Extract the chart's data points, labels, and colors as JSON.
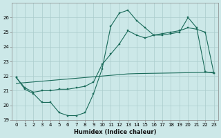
{
  "xlabel": "Humidex (Indice chaleur)",
  "xlim": [
    -0.5,
    23.5
  ],
  "ylim": [
    19,
    27
  ],
  "yticks": [
    19,
    20,
    21,
    22,
    23,
    24,
    25,
    26
  ],
  "xticks": [
    0,
    1,
    2,
    3,
    4,
    5,
    6,
    7,
    8,
    9,
    10,
    11,
    12,
    13,
    14,
    15,
    16,
    17,
    18,
    19,
    20,
    21,
    22,
    23
  ],
  "bg_color": "#cce8e8",
  "grid_color": "#aacccc",
  "line_color": "#1a6b5a",
  "line1_y": [
    21.9,
    21.1,
    20.8,
    20.2,
    20.2,
    19.5,
    19.3,
    19.3,
    19.5,
    20.8,
    22.5,
    25.4,
    26.3,
    26.5,
    25.8,
    25.3,
    24.8,
    24.8,
    24.9,
    25.0,
    26.0,
    25.3,
    22.3,
    22.2
  ],
  "line2_y": [
    21.9,
    21.2,
    20.9,
    21.0,
    21.0,
    21.1,
    21.1,
    21.2,
    21.3,
    21.6,
    22.8,
    23.5,
    24.2,
    25.1,
    24.8,
    24.6,
    24.8,
    24.9,
    25.0,
    25.1,
    25.3,
    25.2,
    25.0,
    22.2
  ],
  "line3_y": [
    21.5,
    21.55,
    21.6,
    21.65,
    21.7,
    21.75,
    21.8,
    21.85,
    21.9,
    21.95,
    22.0,
    22.05,
    22.1,
    22.15,
    22.17,
    22.18,
    22.19,
    22.2,
    22.21,
    22.22,
    22.23,
    22.24,
    22.25,
    22.26
  ],
  "marker_size": 2.0,
  "linewidth": 0.8
}
